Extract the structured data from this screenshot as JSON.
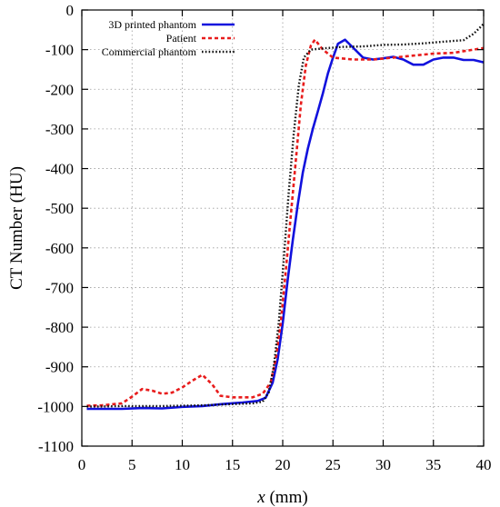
{
  "chart_data": {
    "type": "line",
    "xlabel_var": "x",
    "xlabel_unit": " (mm)",
    "ylabel": "CT Number (HU)",
    "xlim": [
      0,
      40
    ],
    "ylim": [
      -1100,
      0
    ],
    "xticks": [
      0,
      5,
      10,
      15,
      20,
      25,
      30,
      35,
      40
    ],
    "yticks": [
      0,
      -100,
      -200,
      -300,
      -400,
      -500,
      -600,
      -700,
      -800,
      -900,
      -1000,
      -1100
    ],
    "grid": true,
    "legend_position": "top-left",
    "series": [
      {
        "name": "3D printed phantom",
        "color": "#1111dd",
        "style": "solid",
        "points": [
          [
            0.5,
            -1006
          ],
          [
            2,
            -1006
          ],
          [
            4,
            -1006
          ],
          [
            6,
            -1004
          ],
          [
            8,
            -1005
          ],
          [
            10,
            -1001
          ],
          [
            12,
            -999
          ],
          [
            14,
            -994
          ],
          [
            16,
            -990
          ],
          [
            17.5,
            -986
          ],
          [
            18.3,
            -978
          ],
          [
            19,
            -940
          ],
          [
            19.5,
            -880
          ],
          [
            20,
            -790
          ],
          [
            20.5,
            -680
          ],
          [
            21,
            -580
          ],
          [
            21.5,
            -490
          ],
          [
            22,
            -410
          ],
          [
            22.5,
            -350
          ],
          [
            23,
            -300
          ],
          [
            23.5,
            -255
          ],
          [
            24,
            -210
          ],
          [
            24.5,
            -160
          ],
          [
            25,
            -120
          ],
          [
            25.5,
            -85
          ],
          [
            26.2,
            -75
          ],
          [
            27,
            -95
          ],
          [
            28,
            -120
          ],
          [
            29,
            -125
          ],
          [
            30,
            -122
          ],
          [
            31,
            -118
          ],
          [
            32,
            -125
          ],
          [
            33,
            -138
          ],
          [
            34,
            -138
          ],
          [
            35,
            -125
          ],
          [
            36,
            -120
          ],
          [
            37,
            -120
          ],
          [
            38,
            -126
          ],
          [
            39,
            -126
          ],
          [
            40,
            -132
          ]
        ]
      },
      {
        "name": "Patient",
        "color": "#e81c1c",
        "style": "dashed",
        "points": [
          [
            0.5,
            -998
          ],
          [
            2,
            -997
          ],
          [
            4,
            -992
          ],
          [
            5,
            -975
          ],
          [
            6,
            -956
          ],
          [
            7,
            -960
          ],
          [
            8,
            -968
          ],
          [
            9,
            -965
          ],
          [
            10,
            -952
          ],
          [
            11,
            -935
          ],
          [
            12,
            -920
          ],
          [
            13,
            -945
          ],
          [
            13.8,
            -973
          ],
          [
            15,
            -977
          ],
          [
            17,
            -977
          ],
          [
            18,
            -968
          ],
          [
            18.8,
            -940
          ],
          [
            19.3,
            -880
          ],
          [
            19.8,
            -790
          ],
          [
            20.3,
            -660
          ],
          [
            20.8,
            -520
          ],
          [
            21.3,
            -380
          ],
          [
            21.8,
            -240
          ],
          [
            22.3,
            -140
          ],
          [
            22.8,
            -90
          ],
          [
            23.2,
            -75
          ],
          [
            24,
            -100
          ],
          [
            25,
            -120
          ],
          [
            27,
            -125
          ],
          [
            29,
            -125
          ],
          [
            31,
            -120
          ],
          [
            33,
            -115
          ],
          [
            35,
            -110
          ],
          [
            37,
            -108
          ],
          [
            39,
            -100
          ],
          [
            40,
            -96
          ]
        ]
      },
      {
        "name": "Commercial phantom",
        "color": "#111111",
        "style": "dotted",
        "points": [
          [
            0.5,
            -1000
          ],
          [
            2,
            -1000
          ],
          [
            4,
            -999
          ],
          [
            6,
            -999
          ],
          [
            8,
            -999
          ],
          [
            10,
            -998
          ],
          [
            12,
            -997
          ],
          [
            14,
            -995
          ],
          [
            16,
            -993
          ],
          [
            17,
            -992
          ],
          [
            18,
            -988
          ],
          [
            18.6,
            -965
          ],
          [
            19.1,
            -900
          ],
          [
            19.6,
            -790
          ],
          [
            20.1,
            -630
          ],
          [
            20.6,
            -460
          ],
          [
            21.1,
            -310
          ],
          [
            21.6,
            -190
          ],
          [
            22.1,
            -120
          ],
          [
            22.8,
            -100
          ],
          [
            24,
            -97
          ],
          [
            26,
            -93
          ],
          [
            28,
            -92
          ],
          [
            30,
            -88
          ],
          [
            32,
            -87
          ],
          [
            34,
            -84
          ],
          [
            36,
            -80
          ],
          [
            38,
            -76
          ],
          [
            39,
            -60
          ],
          [
            40,
            -35
          ]
        ]
      }
    ]
  }
}
